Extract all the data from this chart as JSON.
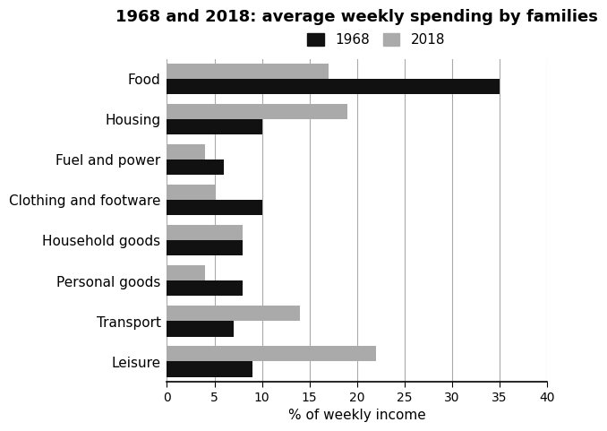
{
  "title": "1968 and 2018: average weekly spending by families",
  "categories": [
    "Food",
    "Housing",
    "Fuel and power",
    "Clothing and footware",
    "Household goods",
    "Personal goods",
    "Transport",
    "Leisure"
  ],
  "values_1968": [
    35,
    10,
    6,
    10,
    8,
    8,
    7,
    9
  ],
  "values_2018": [
    17,
    19,
    4,
    5,
    8,
    4,
    14,
    22
  ],
  "color_1968": "#111111",
  "color_2018": "#aaaaaa",
  "xlabel": "% of weekly income",
  "xlim": [
    0,
    40
  ],
  "xticks": [
    0,
    5,
    10,
    15,
    20,
    25,
    30,
    35,
    40
  ],
  "legend_labels": [
    "1968",
    "2018"
  ],
  "bar_height": 0.38,
  "background_color": "#ffffff",
  "title_fontsize": 13,
  "label_fontsize": 11,
  "tick_fontsize": 10
}
